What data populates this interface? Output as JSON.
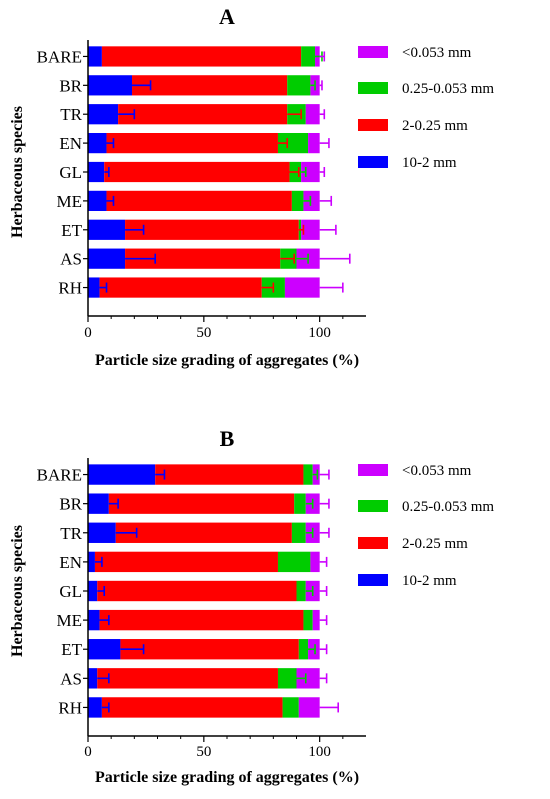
{
  "chart_data": [
    {
      "type": "bar",
      "orientation": "horizontal",
      "stacked": true,
      "title": "A",
      "xlabel": "Particle size grading of aggregates (%)",
      "ylabel": "Herbaceous species",
      "xlim": [
        0,
        120
      ],
      "xticks": [
        0,
        50,
        100
      ],
      "grid": false,
      "legend_position": "right",
      "categories": [
        "BARE",
        "BR",
        "TR",
        "EN",
        "GL",
        "ME",
        "ET",
        "AS",
        "RH"
      ],
      "series": [
        {
          "name": "10-2 mm",
          "color": "#0000ff",
          "values": [
            6,
            19,
            13,
            8,
            7,
            8,
            16,
            16,
            5
          ],
          "errors": [
            0,
            8,
            7,
            3,
            2,
            3,
            8,
            13,
            3
          ]
        },
        {
          "name": "2-0.25 mm",
          "color": "#ff0000",
          "values": [
            86,
            67,
            73,
            74,
            80,
            80,
            75,
            67,
            70
          ],
          "errors": [
            0,
            0,
            6,
            4,
            4,
            0,
            2,
            6,
            5
          ]
        },
        {
          "name": "0.25-0.053 mm",
          "color": "#00cc00",
          "values": [
            6,
            10,
            8,
            13,
            5,
            5,
            1,
            7,
            10
          ],
          "errors": [
            3,
            2,
            0,
            0,
            2,
            3,
            0,
            5,
            0
          ]
        },
        {
          "name": "<0.053 mm",
          "color": "#cc00ff",
          "values": [
            2,
            4,
            6,
            5,
            8,
            7,
            8,
            10,
            15
          ],
          "errors": [
            2,
            1,
            2,
            4,
            2,
            5,
            7,
            13,
            10
          ]
        }
      ]
    },
    {
      "type": "bar",
      "orientation": "horizontal",
      "stacked": true,
      "title": "B",
      "xlabel": "Particle size grading of aggregates (%)",
      "ylabel": "Herbaceous species",
      "xlim": [
        0,
        120
      ],
      "xticks": [
        0,
        50,
        100
      ],
      "grid": false,
      "legend_position": "right",
      "categories": [
        "BARE",
        "BR",
        "TR",
        "EN",
        "GL",
        "ME",
        "ET",
        "AS",
        "RH"
      ],
      "series": [
        {
          "name": "10-2 mm",
          "color": "#0000ff",
          "values": [
            29,
            9,
            12,
            3,
            4,
            5,
            14,
            4,
            6
          ],
          "errors": [
            4,
            4,
            9,
            3,
            3,
            4,
            10,
            5,
            3
          ]
        },
        {
          "name": "2-0.25 mm",
          "color": "#ff0000",
          "values": [
            64,
            80,
            76,
            79,
            86,
            88,
            77,
            78,
            78
          ],
          "errors": [
            0,
            0,
            0,
            0,
            0,
            0,
            0,
            0,
            0
          ]
        },
        {
          "name": "0.25-0.053 mm",
          "color": "#00cc00",
          "values": [
            4,
            5,
            6,
            14,
            4,
            4,
            4,
            8,
            7
          ],
          "errors": [
            2,
            3,
            3,
            0,
            3,
            0,
            3,
            4,
            0
          ]
        },
        {
          "name": "<0.053 mm",
          "color": "#cc00ff",
          "values": [
            3,
            6,
            6,
            4,
            6,
            3,
            5,
            10,
            9
          ],
          "errors": [
            4,
            4,
            4,
            3,
            3,
            3,
            3,
            3,
            8
          ]
        }
      ]
    }
  ]
}
